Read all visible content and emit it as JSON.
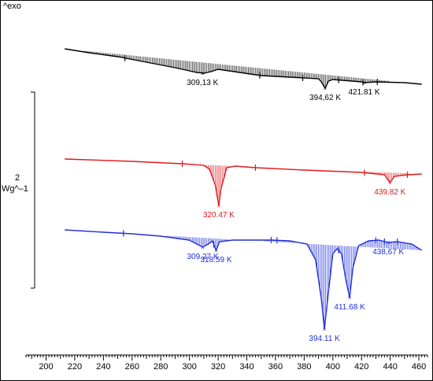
{
  "header": {
    "exo_label": "^exo"
  },
  "scale_bar": {
    "value_label": "2",
    "unit_label": "Wg^–1"
  },
  "colors": {
    "frame": "#000000",
    "series_1": "#000000",
    "series_2": "#e0191c",
    "series_3": "#1f2fd8"
  },
  "chart_data": {
    "type": "line",
    "title": "",
    "xlabel": "",
    "ylabel": "",
    "xlim": [
      186,
      466
    ],
    "xticks": [
      200,
      220,
      240,
      260,
      280,
      300,
      320,
      340,
      360,
      380,
      400,
      420,
      440,
      460
    ],
    "grid": false,
    "series": [
      {
        "color": "#000000",
        "points": [
          [
            213,
            62
          ],
          [
            230,
            67
          ],
          [
            250,
            72
          ],
          [
            270,
            79
          ],
          [
            290,
            86
          ],
          [
            300,
            90
          ],
          [
            305,
            92
          ],
          [
            310,
            93
          ],
          [
            315,
            91
          ],
          [
            320,
            88
          ],
          [
            335,
            92
          ],
          [
            350,
            96
          ],
          [
            370,
            98
          ],
          [
            390,
            100
          ],
          [
            392,
            104
          ],
          [
            394.62,
            112
          ],
          [
            397,
            103
          ],
          [
            400,
            101
          ],
          [
            420,
            104
          ],
          [
            421.81,
            105
          ],
          [
            430,
            104
          ],
          [
            450,
            105
          ],
          [
            462,
            107
          ]
        ],
        "peaks": [
          {
            "x": 309.13,
            "label": "309,13 K"
          },
          {
            "x": 394.62,
            "label": "394,62 K"
          },
          {
            "x": 421.81,
            "label": "421.81 K"
          }
        ],
        "tick_marks": [
          255,
          349,
          379,
          404,
          421,
          431
        ]
      },
      {
        "color": "#e0191c",
        "points": [
          [
            213,
            202
          ],
          [
            260,
            205
          ],
          [
            295,
            208
          ],
          [
            310,
            210
          ],
          [
            314,
            215
          ],
          [
            318,
            235
          ],
          [
            320.47,
            261
          ],
          [
            322,
            240
          ],
          [
            326,
            213
          ],
          [
            332,
            211
          ],
          [
            346,
            213
          ],
          [
            380,
            216
          ],
          [
            420,
            219
          ],
          [
            436,
            222
          ],
          [
            439.82,
            232
          ],
          [
            443,
            224
          ],
          [
            452,
            222
          ],
          [
            462,
            221
          ]
        ],
        "peaks": [
          {
            "x": 320.47,
            "label": "320.47 K"
          },
          {
            "x": 439.82,
            "label": "439.82 K"
          }
        ],
        "tick_marks": [
          295,
          346,
          422,
          452
        ]
      },
      {
        "color": "#1f2fd8",
        "points": [
          [
            213,
            292
          ],
          [
            240,
            295
          ],
          [
            260,
            297
          ],
          [
            280,
            300
          ],
          [
            300,
            305
          ],
          [
            309.27,
            314
          ],
          [
            314,
            309
          ],
          [
            316,
            306
          ],
          [
            318.59,
            318
          ],
          [
            321,
            307
          ],
          [
            330,
            305
          ],
          [
            357,
            305
          ],
          [
            370,
            306
          ],
          [
            382,
            310
          ],
          [
            388,
            330
          ],
          [
            392,
            380
          ],
          [
            394.11,
            418
          ],
          [
            397,
            370
          ],
          [
            400,
            322
          ],
          [
            403,
            316
          ],
          [
            406,
            322
          ],
          [
            409,
            355
          ],
          [
            411.68,
            378
          ],
          [
            414,
            340
          ],
          [
            418,
            312
          ],
          [
            425,
            306
          ],
          [
            432,
            305
          ],
          [
            438.67,
            308
          ],
          [
            445,
            307
          ],
          [
            455,
            310
          ],
          [
            462,
            318
          ]
        ],
        "peaks": [
          {
            "x": 309.27,
            "label": "309.27 K"
          },
          {
            "x": 318.59,
            "label": "318.59 K"
          },
          {
            "x": 394.11,
            "label": "394.11 K"
          },
          {
            "x": 411.68,
            "label": "411.68 K"
          },
          {
            "x": 438.67,
            "label": "438,67 K"
          }
        ],
        "tick_marks": [
          254,
          317,
          357,
          361,
          404,
          430,
          436,
          445
        ]
      }
    ]
  }
}
